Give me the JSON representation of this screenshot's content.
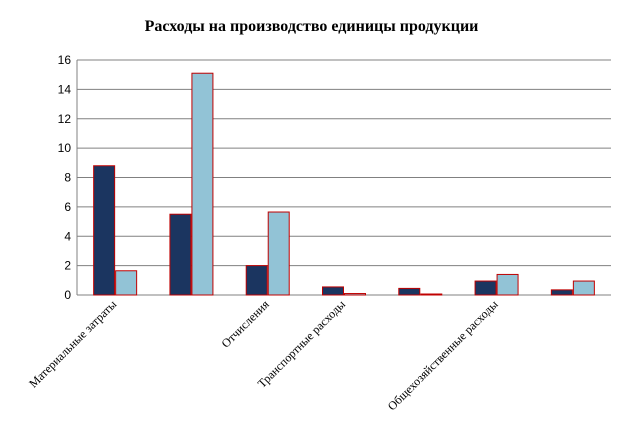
{
  "chart_data": {
    "type": "bar",
    "title": "Расходы на производство единицы продукции",
    "xlabel": "",
    "ylabel": "",
    "ylim": [
      0,
      16
    ],
    "yticks": [
      0,
      2,
      4,
      6,
      8,
      10,
      12,
      14,
      16
    ],
    "grid": true,
    "legend": "none",
    "categories": [
      "Материальные затраты",
      "",
      "Отчисления",
      "Транспортные расходы",
      "",
      "Общехозяйственные расходы",
      ""
    ],
    "series": [
      {
        "values": [
          8.8,
          5.5,
          2.0,
          0.55,
          0.45,
          0.95,
          0.35
        ]
      },
      {
        "values": [
          1.65,
          15.1,
          5.65,
          0.1,
          0.05,
          1.4,
          0.95
        ]
      }
    ],
    "colors": {
      "series": [
        "#1b3560",
        "#92c3d6"
      ],
      "bar_border": "#c00000",
      "grid": "#808080",
      "axis": "#808080"
    }
  }
}
